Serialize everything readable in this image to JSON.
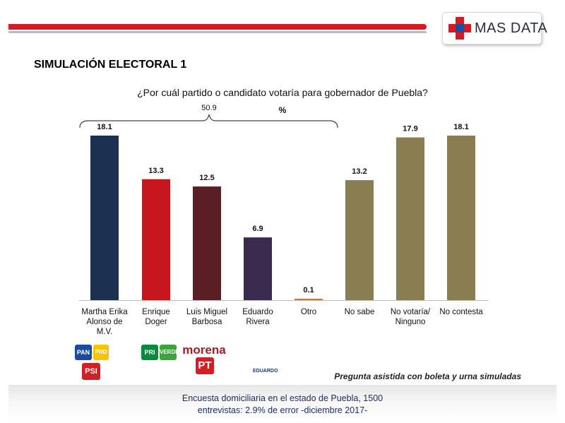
{
  "header": {
    "brand": "MAS DATA",
    "section_title": "SIMULACIÓN ELECTORAL 1"
  },
  "chart_data": {
    "type": "bar",
    "title": "¿Por cuál partido o candidato votaría para gobernador de Puebla?",
    "unit_label": "%",
    "bracket_value": "50.9",
    "categories": [
      [
        "Martha Erika",
        "Alonso de",
        "M.V."
      ],
      [
        "Enrique",
        "Doger"
      ],
      [
        "Luis Miguel",
        "Barbosa"
      ],
      [
        "Eduardo",
        "Rivera"
      ],
      [
        "Otro"
      ],
      [
        "No sabe"
      ],
      [
        "No votaría/",
        "Ninguno"
      ],
      [
        "No contesta"
      ]
    ],
    "values": [
      18.1,
      13.3,
      12.5,
      6.9,
      0.1,
      13.2,
      17.9,
      18.1
    ],
    "value_labels": [
      "18.1",
      "13.3",
      "12.5",
      "6.9",
      "0.1",
      "13.2",
      "17.9",
      "18.1"
    ],
    "colors": [
      "#1b2f4f",
      "#c4161c",
      "#5a1f24",
      "#3a2a4d",
      "#c97a2b",
      "#8b7d52",
      "#8b7d52",
      "#8b7d52"
    ],
    "ylim": [
      0,
      18.1
    ],
    "grid": false,
    "legend": "none"
  },
  "party_logos": [
    {
      "name": "PAN",
      "color": "#1a4a9c"
    },
    {
      "name": "PRD",
      "color": "#f6c500"
    },
    {
      "name": "PSI",
      "color": "#d21f26"
    },
    {
      "name": "PRI",
      "color": "#0a8a3c"
    },
    {
      "name": "VERDE",
      "color": "#3aa53a"
    },
    {
      "name": "morena",
      "color": "#a31d24"
    },
    {
      "name": "PT",
      "color": "#d21f26"
    },
    {
      "name": "EDUARDO",
      "color": "#1e3a6e"
    }
  ],
  "note": "Pregunta asistida con boleta y urna simuladas",
  "footer": {
    "line1": "Encuesta domiciliaria en el estado de Puebla, 1500",
    "line2": "entrevistas: 2.9% de error -diciembre 2017-"
  }
}
